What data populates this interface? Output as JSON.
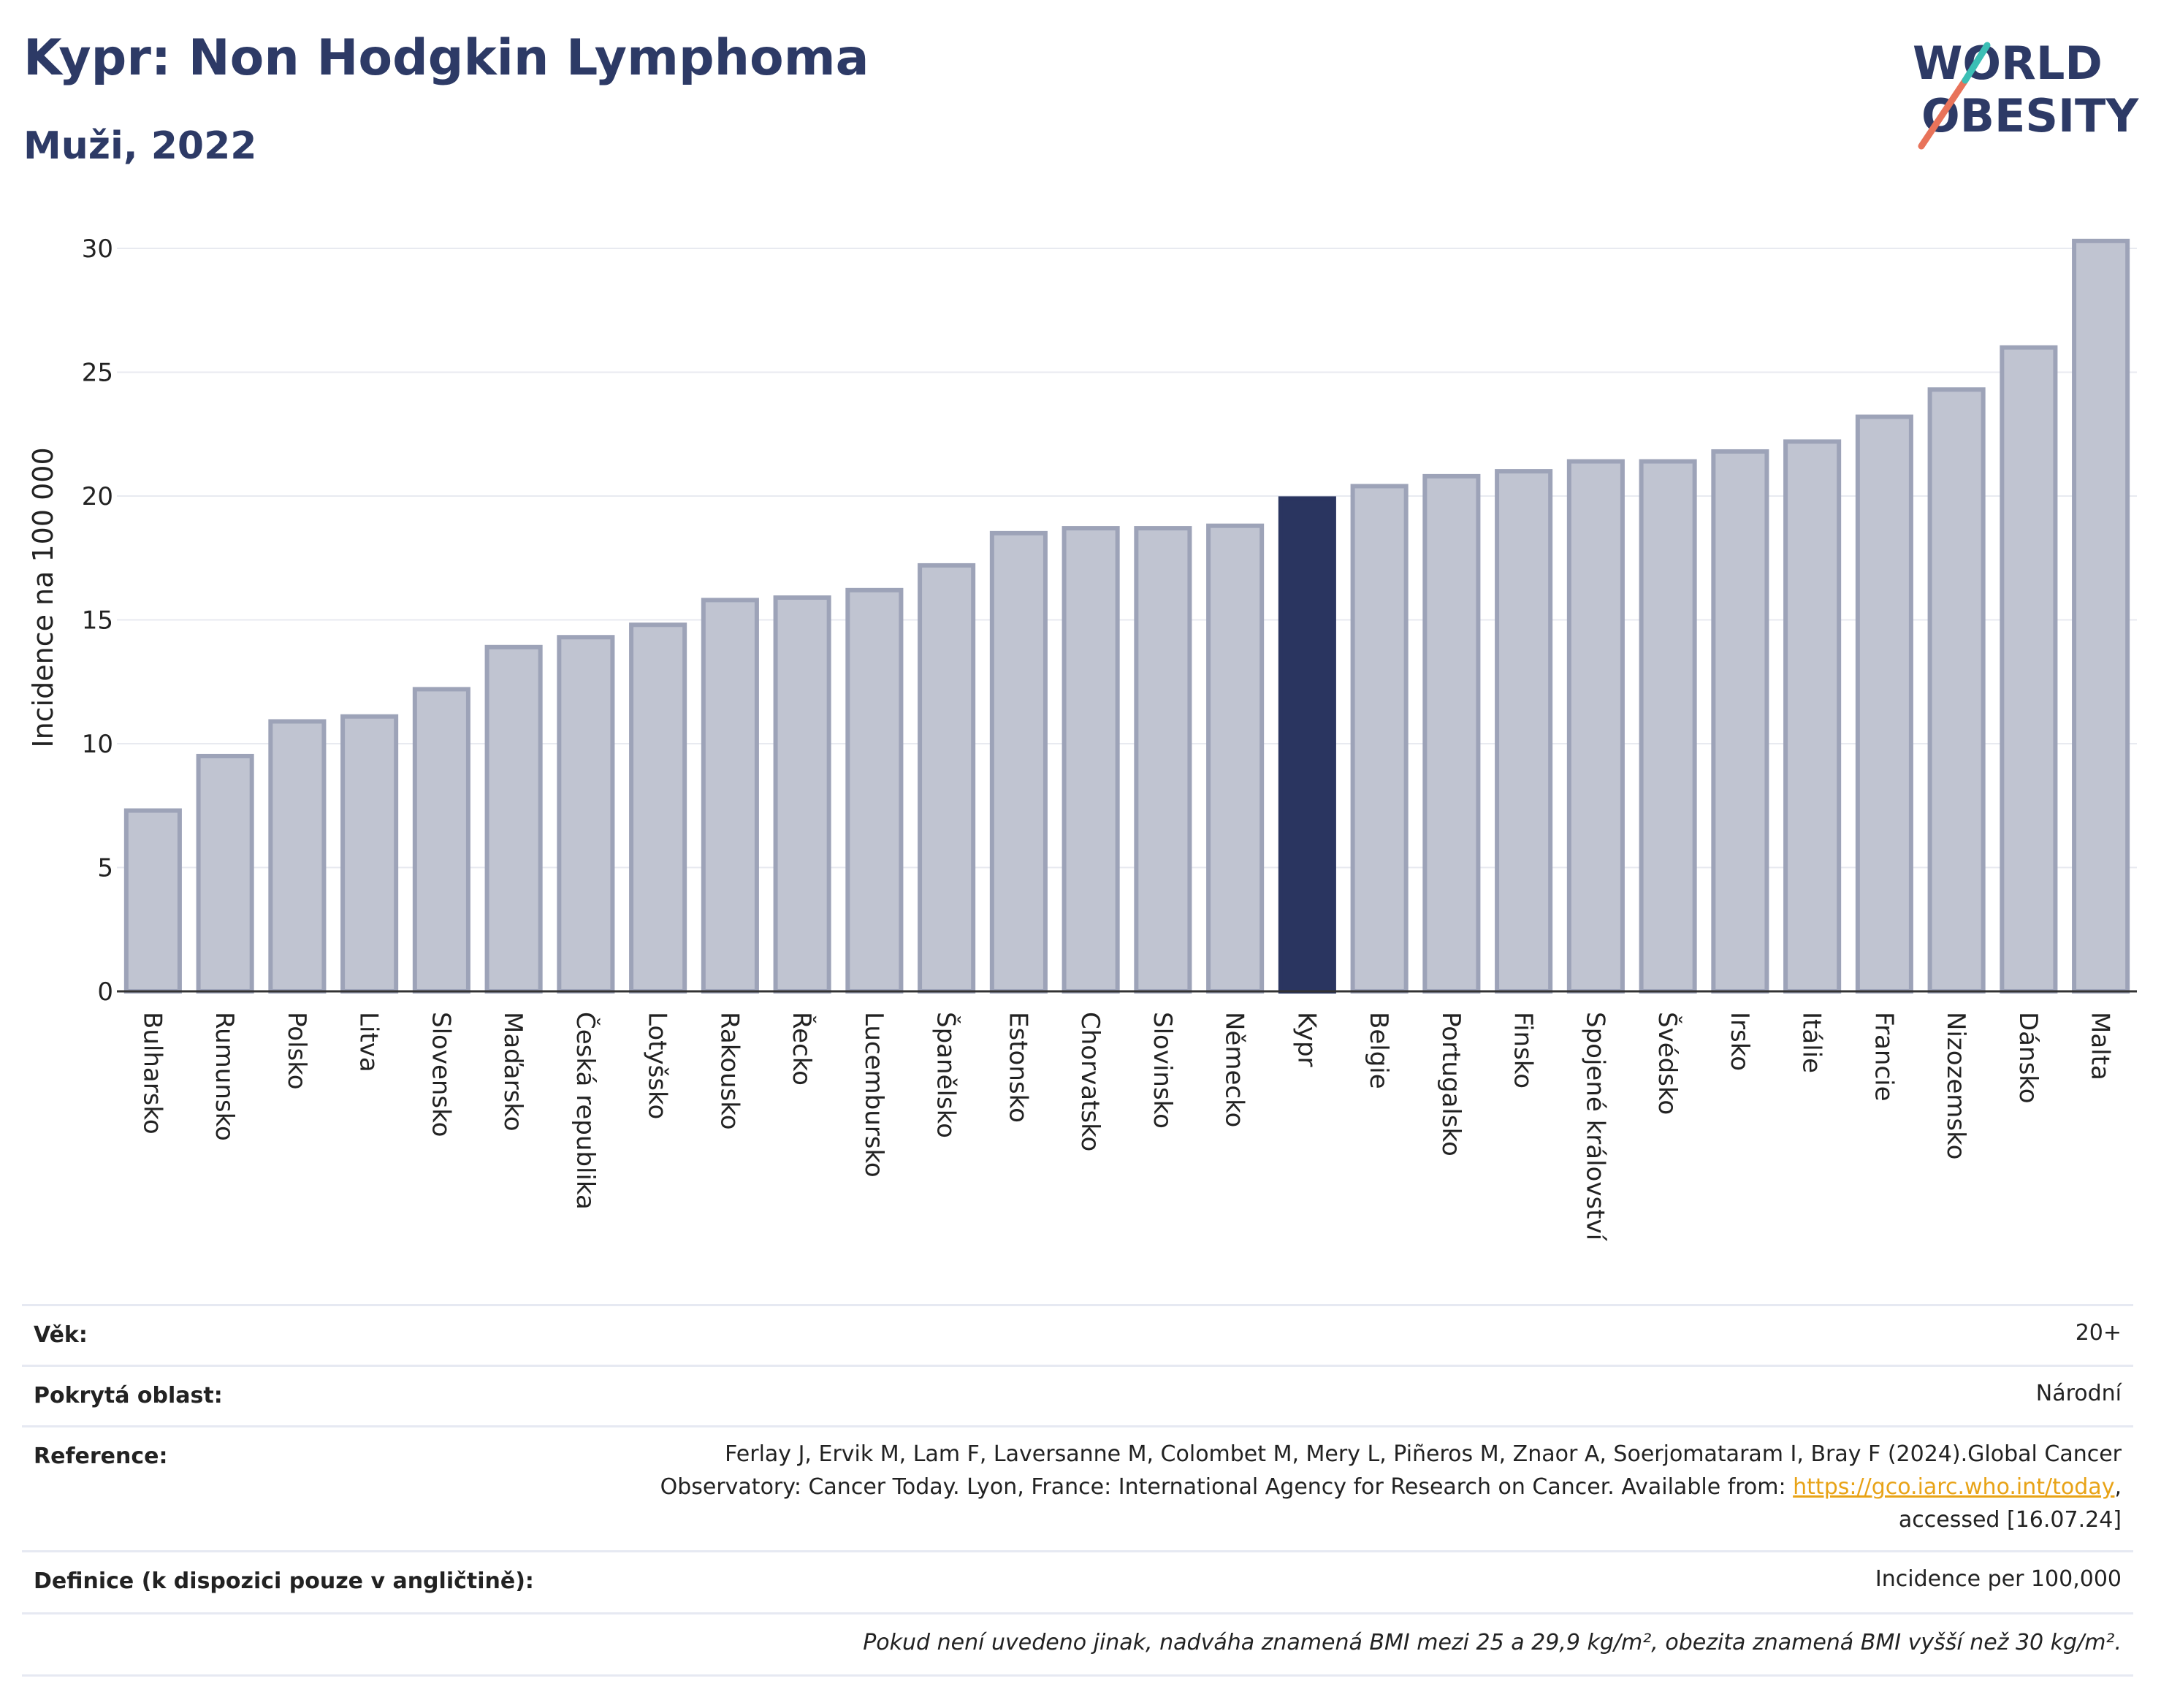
{
  "header": {
    "title": "Kypr: Non Hodgkin Lymphoma",
    "subtitle": "Muži, 2022"
  },
  "logo": {
    "line1": "WORLD",
    "line2": "OBESITY",
    "colors": [
      "#2d3a66",
      "#e8735a",
      "#3bbfb5"
    ]
  },
  "colors": {
    "bar": "#c0c4d1",
    "bar_border": "#9da3b8",
    "highlight": "#2a3560",
    "grid": "#e8eaf0",
    "axis": "#333333"
  },
  "chart_data": {
    "type": "bar",
    "title": "Kypr: Non Hodgkin Lymphoma",
    "subtitle": "Muži, 2022",
    "xlabel": "",
    "ylabel": "Incidence na 100 000",
    "ylim": [
      0,
      31
    ],
    "yticks": [
      0,
      5,
      10,
      15,
      20,
      25,
      30
    ],
    "grid": true,
    "highlight": "Kypr",
    "categories": [
      "Bulharsko",
      "Rumunsko",
      "Polsko",
      "Litva",
      "Slovensko",
      "Maďarsko",
      "Česká republika",
      "Lotyšsko",
      "Rakousko",
      "Řecko",
      "Lucembursko",
      "Španělsko",
      "Estonsko",
      "Chorvatsko",
      "Slovinsko",
      "Německo",
      "Kypr",
      "Belgie",
      "Portugalsko",
      "Finsko",
      "Spojené království",
      "Švédsko",
      "Irsko",
      "Itálie",
      "Francie",
      "Nizozemsko",
      "Dánsko",
      "Malta"
    ],
    "values": [
      7.3,
      9.5,
      10.9,
      11.1,
      12.2,
      13.9,
      14.3,
      14.8,
      15.8,
      15.9,
      16.2,
      17.2,
      18.5,
      18.7,
      18.7,
      18.8,
      19.9,
      20.4,
      20.8,
      21.0,
      21.4,
      21.4,
      21.8,
      22.2,
      23.2,
      24.3,
      26.0,
      30.3
    ]
  },
  "info": {
    "age_label": "Věk:",
    "age_value": "20+",
    "area_label": "Pokrytá oblast:",
    "area_value": "Národní",
    "ref_label": "Reference:",
    "ref_line1": "Ferlay J, Ervik M, Lam F, Laversanne M, Colombet M, Mery L, Piñeros M, Znaor A, Soerjomataram I, Bray F (2024).Global Cancer",
    "ref_line2_pre": "Observatory: Cancer Today. Lyon, France: International Agency for Research on Cancer. Available from: ",
    "ref_link": "https://gco.iarc.who.int/today",
    "ref_line2_post": ",",
    "ref_line3": "accessed [16.07.24]",
    "def_label": "Definice (k dispozici pouze v angličtině):",
    "def_value": "Incidence per 100,000",
    "note": "Pokud není uvedeno jinak, nadváha znamená BMI mezi 25 a 29,9 kg/m², obezita znamená BMI vyšší než 30 kg/m²."
  }
}
